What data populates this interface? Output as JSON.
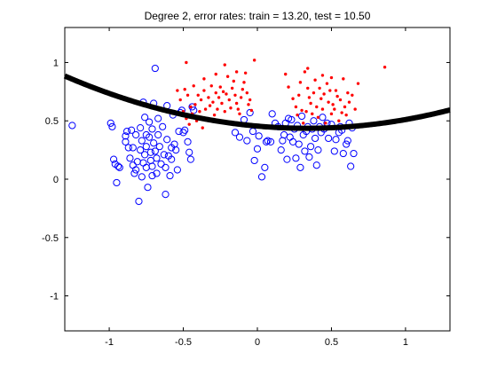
{
  "chart_data": {
    "type": "scatter",
    "title": "Degree 2, error rates: train = 13.20, test = 10.50",
    "xlabel": "",
    "ylabel": "",
    "xlim": [
      -1.3,
      1.3
    ],
    "ylim": [
      -1.3,
      1.3
    ],
    "xticks": [
      -1,
      -0.5,
      0,
      0.5,
      1
    ],
    "xtick_labels": [
      "-1",
      "-0.5",
      "0",
      "0.5",
      "1"
    ],
    "yticks": [
      -1,
      -0.5,
      0,
      0.5,
      1
    ],
    "ytick_labels": [
      "-1",
      "-0.5",
      "0",
      "0.5",
      "1"
    ],
    "grid": false,
    "legend": "none",
    "colors": {
      "class_a": "#0000ff",
      "class_b": "#ff0000",
      "boundary": "#000000"
    },
    "boundary": {
      "type": "quadratic",
      "coefficients": [
        0.455,
        -0.112,
        0.168
      ],
      "form": "y = c0 + c1*x + c2*x^2"
    },
    "series": [
      {
        "marker": "circle",
        "color": "#0000ff",
        "points": [
          [
            -1.25,
            0.46
          ],
          [
            -0.99,
            0.48
          ],
          [
            -0.98,
            0.45
          ],
          [
            -0.97,
            0.17
          ],
          [
            -0.96,
            0.13
          ],
          [
            -0.95,
            -0.03
          ],
          [
            -0.94,
            0.11
          ],
          [
            -0.93,
            0.1
          ],
          [
            -0.89,
            0.37
          ],
          [
            -0.89,
            0.32
          ],
          [
            -0.88,
            0.41
          ],
          [
            -0.87,
            0.27
          ],
          [
            -0.86,
            0.18
          ],
          [
            -0.85,
            0.42
          ],
          [
            -0.84,
            0.27
          ],
          [
            -0.84,
            0.12
          ],
          [
            -0.83,
            0.05
          ],
          [
            -0.82,
            0.38
          ],
          [
            -0.82,
            0.08
          ],
          [
            -0.81,
            0.15
          ],
          [
            -0.8,
            -0.19
          ],
          [
            -0.79,
            0.44
          ],
          [
            -0.79,
            0.25
          ],
          [
            -0.78,
            0.33
          ],
          [
            -0.78,
            0.02
          ],
          [
            -0.77,
            0.66
          ],
          [
            -0.77,
            0.14
          ],
          [
            -0.76,
            0.53
          ],
          [
            -0.76,
            0.21
          ],
          [
            -0.75,
            0.38
          ],
          [
            -0.75,
            0.28
          ],
          [
            -0.75,
            0.1
          ],
          [
            -0.74,
            -0.07
          ],
          [
            -0.73,
            0.49
          ],
          [
            -0.73,
            0.36
          ],
          [
            -0.72,
            0.23
          ],
          [
            -0.72,
            0.16
          ],
          [
            -0.71,
            0.43
          ],
          [
            -0.71,
            0.11
          ],
          [
            -0.71,
            0.03
          ],
          [
            -0.7,
            0.65
          ],
          [
            -0.7,
            0.31
          ],
          [
            -0.69,
            0.95
          ],
          [
            -0.69,
            0.24
          ],
          [
            -0.68,
            0.18
          ],
          [
            -0.68,
            0.05
          ],
          [
            -0.67,
            0.52
          ],
          [
            -0.67,
            0.38
          ],
          [
            -0.66,
            0.28
          ],
          [
            -0.65,
            0.13
          ],
          [
            -0.64,
            0.45
          ],
          [
            -0.63,
            0.21
          ],
          [
            -0.62,
            0.1
          ],
          [
            -0.62,
            -0.13
          ],
          [
            -0.61,
            0.34
          ],
          [
            -0.61,
            0.63
          ],
          [
            -0.6,
            0.2
          ],
          [
            -0.59,
            0.03
          ],
          [
            -0.58,
            0.27
          ],
          [
            -0.58,
            0.17
          ],
          [
            -0.57,
            0.55
          ],
          [
            -0.56,
            0.3
          ],
          [
            -0.55,
            0.25
          ],
          [
            -0.54,
            0.08
          ],
          [
            -0.53,
            0.41
          ],
          [
            -0.52,
            0.57
          ],
          [
            -0.51,
            0.59
          ],
          [
            -0.5,
            0.4
          ],
          [
            -0.49,
            0.42
          ],
          [
            -0.47,
            0.32
          ],
          [
            -0.46,
            0.23
          ],
          [
            -0.45,
            0.17
          ],
          [
            -0.44,
            0.62
          ],
          [
            -0.43,
            0.59
          ],
          [
            -0.15,
            0.4
          ],
          [
            -0.12,
            0.36
          ],
          [
            -0.09,
            0.51
          ],
          [
            -0.07,
            0.33
          ],
          [
            -0.05,
            0.57
          ],
          [
            -0.03,
            0.41
          ],
          [
            -0.02,
            0.16
          ],
          [
            0.0,
            0.26
          ],
          [
            0.01,
            0.37
          ],
          [
            0.03,
            0.02
          ],
          [
            0.05,
            0.1
          ],
          [
            0.06,
            0.32
          ],
          [
            0.07,
            0.33
          ],
          [
            0.09,
            0.32
          ],
          [
            0.1,
            0.56
          ],
          [
            0.12,
            0.48
          ],
          [
            0.14,
            0.45
          ],
          [
            0.16,
            0.25
          ],
          [
            0.17,
            0.33
          ],
          [
            0.18,
            0.38
          ],
          [
            0.19,
            0.48
          ],
          [
            0.2,
            0.17
          ],
          [
            0.21,
            0.52
          ],
          [
            0.22,
            0.36
          ],
          [
            0.23,
            0.51
          ],
          [
            0.24,
            0.32
          ],
          [
            0.25,
            0.43
          ],
          [
            0.26,
            0.18
          ],
          [
            0.27,
            0.46
          ],
          [
            0.28,
            0.3
          ],
          [
            0.29,
            0.1
          ],
          [
            0.3,
            0.54
          ],
          [
            0.31,
            0.38
          ],
          [
            0.32,
            0.24
          ],
          [
            0.33,
            0.41
          ],
          [
            0.34,
            0.45
          ],
          [
            0.35,
            0.19
          ],
          [
            0.36,
            0.28
          ],
          [
            0.37,
            0.43
          ],
          [
            0.38,
            0.5
          ],
          [
            0.39,
            0.35
          ],
          [
            0.4,
            0.12
          ],
          [
            0.41,
            0.25
          ],
          [
            0.42,
            0.45
          ],
          [
            0.43,
            0.4
          ],
          [
            0.44,
            0.53
          ],
          [
            0.45,
            0.43
          ],
          [
            0.47,
            0.48
          ],
          [
            0.48,
            0.35
          ],
          [
            0.5,
            0.47
          ],
          [
            0.52,
            0.24
          ],
          [
            0.53,
            0.34
          ],
          [
            0.55,
            0.4
          ],
          [
            0.56,
            0.45
          ],
          [
            0.57,
            0.42
          ],
          [
            0.58,
            0.22
          ],
          [
            0.6,
            0.3
          ],
          [
            0.61,
            0.33
          ],
          [
            0.62,
            0.48
          ],
          [
            0.63,
            0.11
          ],
          [
            0.64,
            0.44
          ],
          [
            0.65,
            0.22
          ]
        ]
      },
      {
        "marker": "point",
        "color": "#ff0000",
        "points": [
          [
            -0.54,
            0.76
          ],
          [
            -0.52,
            0.68
          ],
          [
            -0.5,
            0.58
          ],
          [
            -0.49,
            0.77
          ],
          [
            -0.48,
            0.52
          ],
          [
            -0.47,
            0.72
          ],
          [
            -0.46,
            0.47
          ],
          [
            -0.45,
            0.62
          ],
          [
            -0.44,
            0.56
          ],
          [
            -0.43,
            0.8
          ],
          [
            -0.42,
            0.64
          ],
          [
            -0.41,
            0.5
          ],
          [
            -0.4,
            0.72
          ],
          [
            -0.39,
            0.58
          ],
          [
            -0.38,
            0.68
          ],
          [
            -0.37,
            0.44
          ],
          [
            -0.36,
            0.76
          ],
          [
            -0.35,
            0.6
          ],
          [
            -0.34,
            0.52
          ],
          [
            -0.33,
            0.7
          ],
          [
            -0.32,
            0.63
          ],
          [
            -0.31,
            0.8
          ],
          [
            -0.3,
            0.66
          ],
          [
            -0.29,
            0.55
          ],
          [
            -0.28,
            0.74
          ],
          [
            -0.27,
            0.6
          ],
          [
            -0.26,
            0.7
          ],
          [
            -0.25,
            0.79
          ],
          [
            -0.24,
            0.65
          ],
          [
            -0.23,
            0.75
          ],
          [
            -0.22,
            0.58
          ],
          [
            -0.21,
            0.73
          ],
          [
            -0.2,
            0.88
          ],
          [
            -0.19,
            0.68
          ],
          [
            -0.18,
            0.61
          ],
          [
            -0.17,
            0.78
          ],
          [
            -0.16,
            0.84
          ],
          [
            -0.15,
            0.72
          ],
          [
            -0.14,
            0.65
          ],
          [
            -0.13,
            0.6
          ],
          [
            -0.12,
            0.56
          ],
          [
            -0.11,
            0.7
          ],
          [
            -0.1,
            0.77
          ],
          [
            -0.09,
            0.83
          ],
          [
            -0.08,
            0.91
          ],
          [
            -0.07,
            0.74
          ],
          [
            -0.06,
            0.64
          ],
          [
            -0.05,
            0.68
          ],
          [
            -0.04,
            0.59
          ],
          [
            -0.48,
            1.0
          ],
          [
            -0.36,
            0.86
          ],
          [
            -0.28,
            0.9
          ],
          [
            -0.22,
            0.98
          ],
          [
            -0.14,
            0.92
          ],
          [
            -0.02,
            1.02
          ],
          [
            0.19,
            0.9
          ],
          [
            0.21,
            0.79
          ],
          [
            0.24,
            0.69
          ],
          [
            0.26,
            0.62
          ],
          [
            0.27,
            0.55
          ],
          [
            0.28,
            0.72
          ],
          [
            0.29,
            0.83
          ],
          [
            0.3,
            0.59
          ],
          [
            0.31,
            0.48
          ],
          [
            0.32,
            0.92
          ],
          [
            0.33,
            0.58
          ],
          [
            0.34,
            0.78
          ],
          [
            0.35,
            0.7
          ],
          [
            0.36,
            0.65
          ],
          [
            0.37,
            0.56
          ],
          [
            0.38,
            0.74
          ],
          [
            0.39,
            0.85
          ],
          [
            0.4,
            0.62
          ],
          [
            0.41,
            0.53
          ],
          [
            0.42,
            0.78
          ],
          [
            0.43,
            0.69
          ],
          [
            0.44,
            0.6
          ],
          [
            0.45,
            0.73
          ],
          [
            0.46,
            0.48
          ],
          [
            0.47,
            0.82
          ],
          [
            0.48,
            0.66
          ],
          [
            0.49,
            0.76
          ],
          [
            0.5,
            0.56
          ],
          [
            0.51,
            0.64
          ],
          [
            0.52,
            0.6
          ],
          [
            0.53,
            0.76
          ],
          [
            0.54,
            0.71
          ],
          [
            0.55,
            0.5
          ],
          [
            0.56,
            0.68
          ],
          [
            0.57,
            0.57
          ],
          [
            0.58,
            0.86
          ],
          [
            0.59,
            0.62
          ],
          [
            0.6,
            0.55
          ],
          [
            0.61,
            0.74
          ],
          [
            0.62,
            0.66
          ],
          [
            0.64,
            0.72
          ],
          [
            0.66,
            0.6
          ],
          [
            0.68,
            0.82
          ],
          [
            0.86,
            0.96
          ],
          [
            0.86,
            0.48
          ],
          [
            0.34,
            0.95
          ],
          [
            0.44,
            0.89
          ],
          [
            0.5,
            0.87
          ]
        ]
      }
    ]
  }
}
